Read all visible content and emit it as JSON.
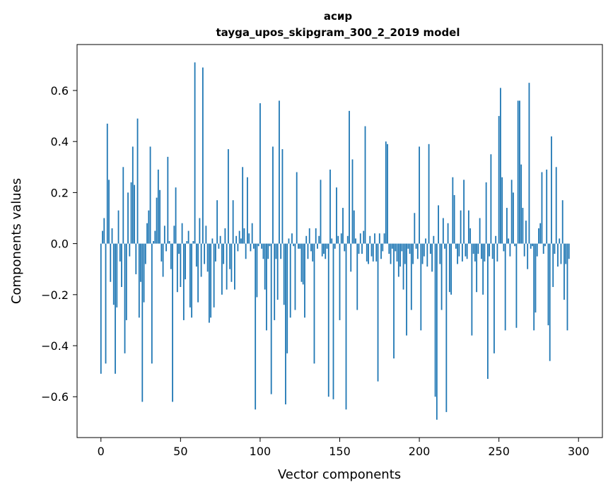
{
  "chart_data": {
    "type": "bar",
    "title_line1": "асир",
    "title_line2": "tayga_upos_skipgram_300_2_2019 model",
    "xlabel": "Vector components",
    "ylabel": "Components values",
    "xlim": [
      -15,
      315
    ],
    "ylim": [
      -0.76,
      0.78
    ],
    "xticks": [
      0,
      50,
      100,
      150,
      200,
      250,
      300
    ],
    "xtick_labels": [
      "0",
      "50",
      "100",
      "150",
      "200",
      "250",
      "300"
    ],
    "yticks": [
      -0.6,
      -0.4,
      -0.2,
      0.0,
      0.2,
      0.4,
      0.6
    ],
    "ytick_labels": [
      "−0.6",
      "−0.4",
      "−0.2",
      "0.0",
      "0.2",
      "0.4",
      "0.6"
    ],
    "bar_color": "#1f77b4",
    "values": [
      -0.51,
      0.05,
      0.1,
      -0.47,
      0.47,
      0.25,
      -0.15,
      0.06,
      -0.24,
      -0.51,
      -0.25,
      0.13,
      -0.07,
      -0.17,
      0.3,
      -0.43,
      -0.3,
      0.2,
      -0.05,
      0.24,
      0.38,
      0.23,
      -0.12,
      0.49,
      -0.29,
      -0.15,
      -0.62,
      -0.23,
      -0.08,
      0.08,
      0.13,
      0.38,
      -0.47,
      0.01,
      0.05,
      0.18,
      0.29,
      0.21,
      -0.07,
      -0.13,
      0.07,
      -0.03,
      0.34,
      0.01,
      -0.1,
      -0.62,
      0.07,
      0.22,
      -0.19,
      -0.04,
      -0.17,
      0.08,
      -0.3,
      -0.14,
      0.01,
      0.05,
      -0.25,
      -0.29,
      0.01,
      0.71,
      -0.09,
      -0.23,
      0.1,
      -0.13,
      0.69,
      -0.08,
      0.07,
      -0.11,
      -0.31,
      -0.29,
      0.02,
      -0.25,
      -0.07,
      0.17,
      -0.02,
      0.03,
      -0.2,
      -0.08,
      0.06,
      -0.18,
      0.37,
      -0.1,
      -0.15,
      0.17,
      -0.18,
      0.03,
      -0.03,
      0.05,
      0.02,
      0.3,
      0.06,
      -0.06,
      0.26,
      0.04,
      -0.03,
      0.08,
      -0.02,
      -0.65,
      -0.21,
      -0.01,
      0.55,
      -0.02,
      -0.06,
      -0.18,
      -0.34,
      -0.06,
      -0.01,
      -0.59,
      0.38,
      -0.3,
      -0.06,
      -0.22,
      0.56,
      -0.06,
      0.37,
      -0.24,
      -0.63,
      -0.43,
      0.02,
      -0.29,
      0.04,
      -0.01,
      -0.26,
      0.28,
      -0.02,
      -0.02,
      -0.15,
      -0.16,
      -0.29,
      0.03,
      -0.06,
      0.06,
      -0.03,
      -0.07,
      -0.47,
      0.06,
      -0.02,
      0.03,
      0.25,
      -0.05,
      -0.04,
      -0.06,
      -0.02,
      -0.6,
      0.29,
      0.02,
      -0.61,
      -0.02,
      0.22,
      0.03,
      -0.3,
      0.04,
      0.14,
      -0.03,
      -0.65,
      0.03,
      0.52,
      -0.11,
      0.33,
      0.13,
      0.02,
      -0.26,
      -0.04,
      0.04,
      -0.04,
      0.05,
      0.46,
      -0.07,
      -0.08,
      0.03,
      -0.05,
      -0.07,
      0.04,
      -0.07,
      -0.54,
      0.04,
      -0.06,
      -0.03,
      0.04,
      0.4,
      0.39,
      -0.04,
      -0.08,
      -0.02,
      -0.45,
      -0.03,
      -0.07,
      -0.13,
      -0.09,
      -0.03,
      -0.18,
      -0.08,
      -0.36,
      -0.02,
      -0.04,
      -0.26,
      -0.08,
      0.12,
      -0.02,
      -0.06,
      0.38,
      -0.34,
      -0.08,
      -0.05,
      0.02,
      -0.09,
      0.39,
      -0.04,
      -0.11,
      0.03,
      -0.6,
      -0.69,
      0.15,
      -0.08,
      -0.26,
      0.1,
      -0.02,
      -0.66,
      0.08,
      -0.19,
      -0.2,
      0.26,
      0.19,
      -0.02,
      -0.08,
      -0.05,
      0.13,
      -0.07,
      0.25,
      -0.05,
      -0.06,
      0.13,
      0.06,
      -0.36,
      -0.04,
      -0.07,
      -0.19,
      -0.04,
      0.1,
      -0.06,
      -0.2,
      -0.07,
      0.24,
      -0.53,
      -0.05,
      0.35,
      -0.06,
      -0.43,
      0.03,
      -0.07,
      0.5,
      0.61,
      0.26,
      -0.03,
      -0.34,
      0.14,
      0.02,
      -0.05,
      0.25,
      0.2,
      -0.01,
      -0.33,
      0.56,
      0.56,
      0.31,
      0.14,
      -0.05,
      0.09,
      -0.1,
      0.63,
      -0.02,
      -0.01,
      -0.34,
      -0.27,
      -0.05,
      0.06,
      0.08,
      0.28,
      -0.04,
      -0.01,
      0.29,
      -0.32,
      -0.46,
      0.42,
      -0.17,
      -0.04,
      0.3,
      -0.09,
      0.02,
      -0.08,
      0.17,
      -0.22,
      -0.08,
      -0.34,
      -0.06
    ]
  }
}
